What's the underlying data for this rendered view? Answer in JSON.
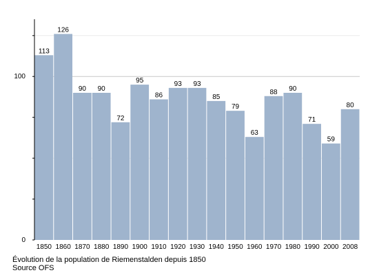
{
  "chart_data": {
    "type": "bar",
    "categories": [
      "1850",
      "1860",
      "1870",
      "1880",
      "1890",
      "1900",
      "1910",
      "1920",
      "1930",
      "1940",
      "1950",
      "1960",
      "1970",
      "1980",
      "1990",
      "2000",
      "2008"
    ],
    "values": [
      113,
      126,
      90,
      90,
      72,
      95,
      86,
      93,
      93,
      85,
      79,
      63,
      88,
      90,
      71,
      59,
      80
    ],
    "yticks": [
      "0",
      "100"
    ],
    "ylim": [
      0,
      135
    ],
    "grid": true,
    "bar_color": "#9fb4cd",
    "grid_color": "#cccccc"
  },
  "caption": {
    "line1": "Évolution de la population de Riemenstalden depuis 1850",
    "line2": "Source OFS"
  }
}
